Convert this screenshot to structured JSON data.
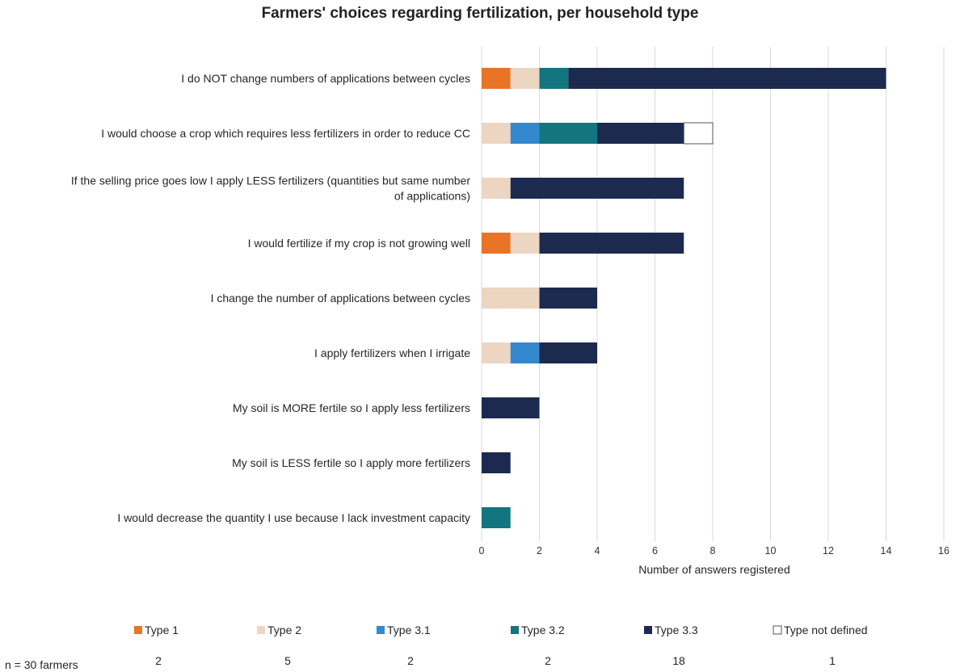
{
  "chart_data": {
    "type": "bar",
    "orientation": "horizontal",
    "stacked": true,
    "title": "Farmers' choices regarding fertilization, per household type",
    "xlabel": "Number of answers registered",
    "ylabel": "",
    "xlim": [
      0,
      16
    ],
    "xticks": [
      0,
      2,
      4,
      6,
      8,
      10,
      12,
      14,
      16
    ],
    "grid": "vertical",
    "legend_position": "bottom",
    "categories": [
      [
        "I do NOT change numbers of applications between cycles"
      ],
      [
        "I would choose a crop which requires less fertilizers in order to reduce CC"
      ],
      [
        "If the selling price goes low I apply LESS fertilizers (quantities but same number",
        "of applications)"
      ],
      [
        "I would fertilize if my crop is not growing well"
      ],
      [
        "I change the number of applications between cycles"
      ],
      [
        "I apply fertilizers when I irrigate"
      ],
      [
        "My soil is MORE fertile so I apply less fertilizers"
      ],
      [
        "My soil is LESS fertile so I apply more fertilizers"
      ],
      [
        "I would decrease the quantity I use because I lack investment capacity"
      ]
    ],
    "series": [
      {
        "name": "Type 1",
        "color": "#e87426",
        "values": [
          1,
          0,
          0,
          1,
          0,
          0,
          0,
          0,
          0
        ]
      },
      {
        "name": "Type 2",
        "color": "#ecd5c1",
        "values": [
          1,
          1,
          1,
          1,
          2,
          1,
          0,
          0,
          0
        ]
      },
      {
        "name": "Type 3.1",
        "color": "#3488ce",
        "values": [
          0,
          1,
          0,
          0,
          0,
          1,
          0,
          0,
          0
        ]
      },
      {
        "name": "Type 3.2",
        "color": "#137580",
        "values": [
          1,
          2,
          0,
          0,
          0,
          0,
          0,
          0,
          1
        ]
      },
      {
        "name": "Type 3.3",
        "color": "#1c2a4f",
        "values": [
          11,
          3,
          6,
          5,
          2,
          2,
          2,
          1,
          0
        ]
      },
      {
        "name": "Type not defined",
        "color": "#ffffff",
        "values": [
          0,
          1,
          0,
          0,
          0,
          0,
          0,
          0,
          0
        ]
      }
    ],
    "sample_size": {
      "label": "n = 30 farmers",
      "counts": [
        "2",
        "5",
        "2",
        "2",
        "18",
        "1"
      ]
    }
  }
}
